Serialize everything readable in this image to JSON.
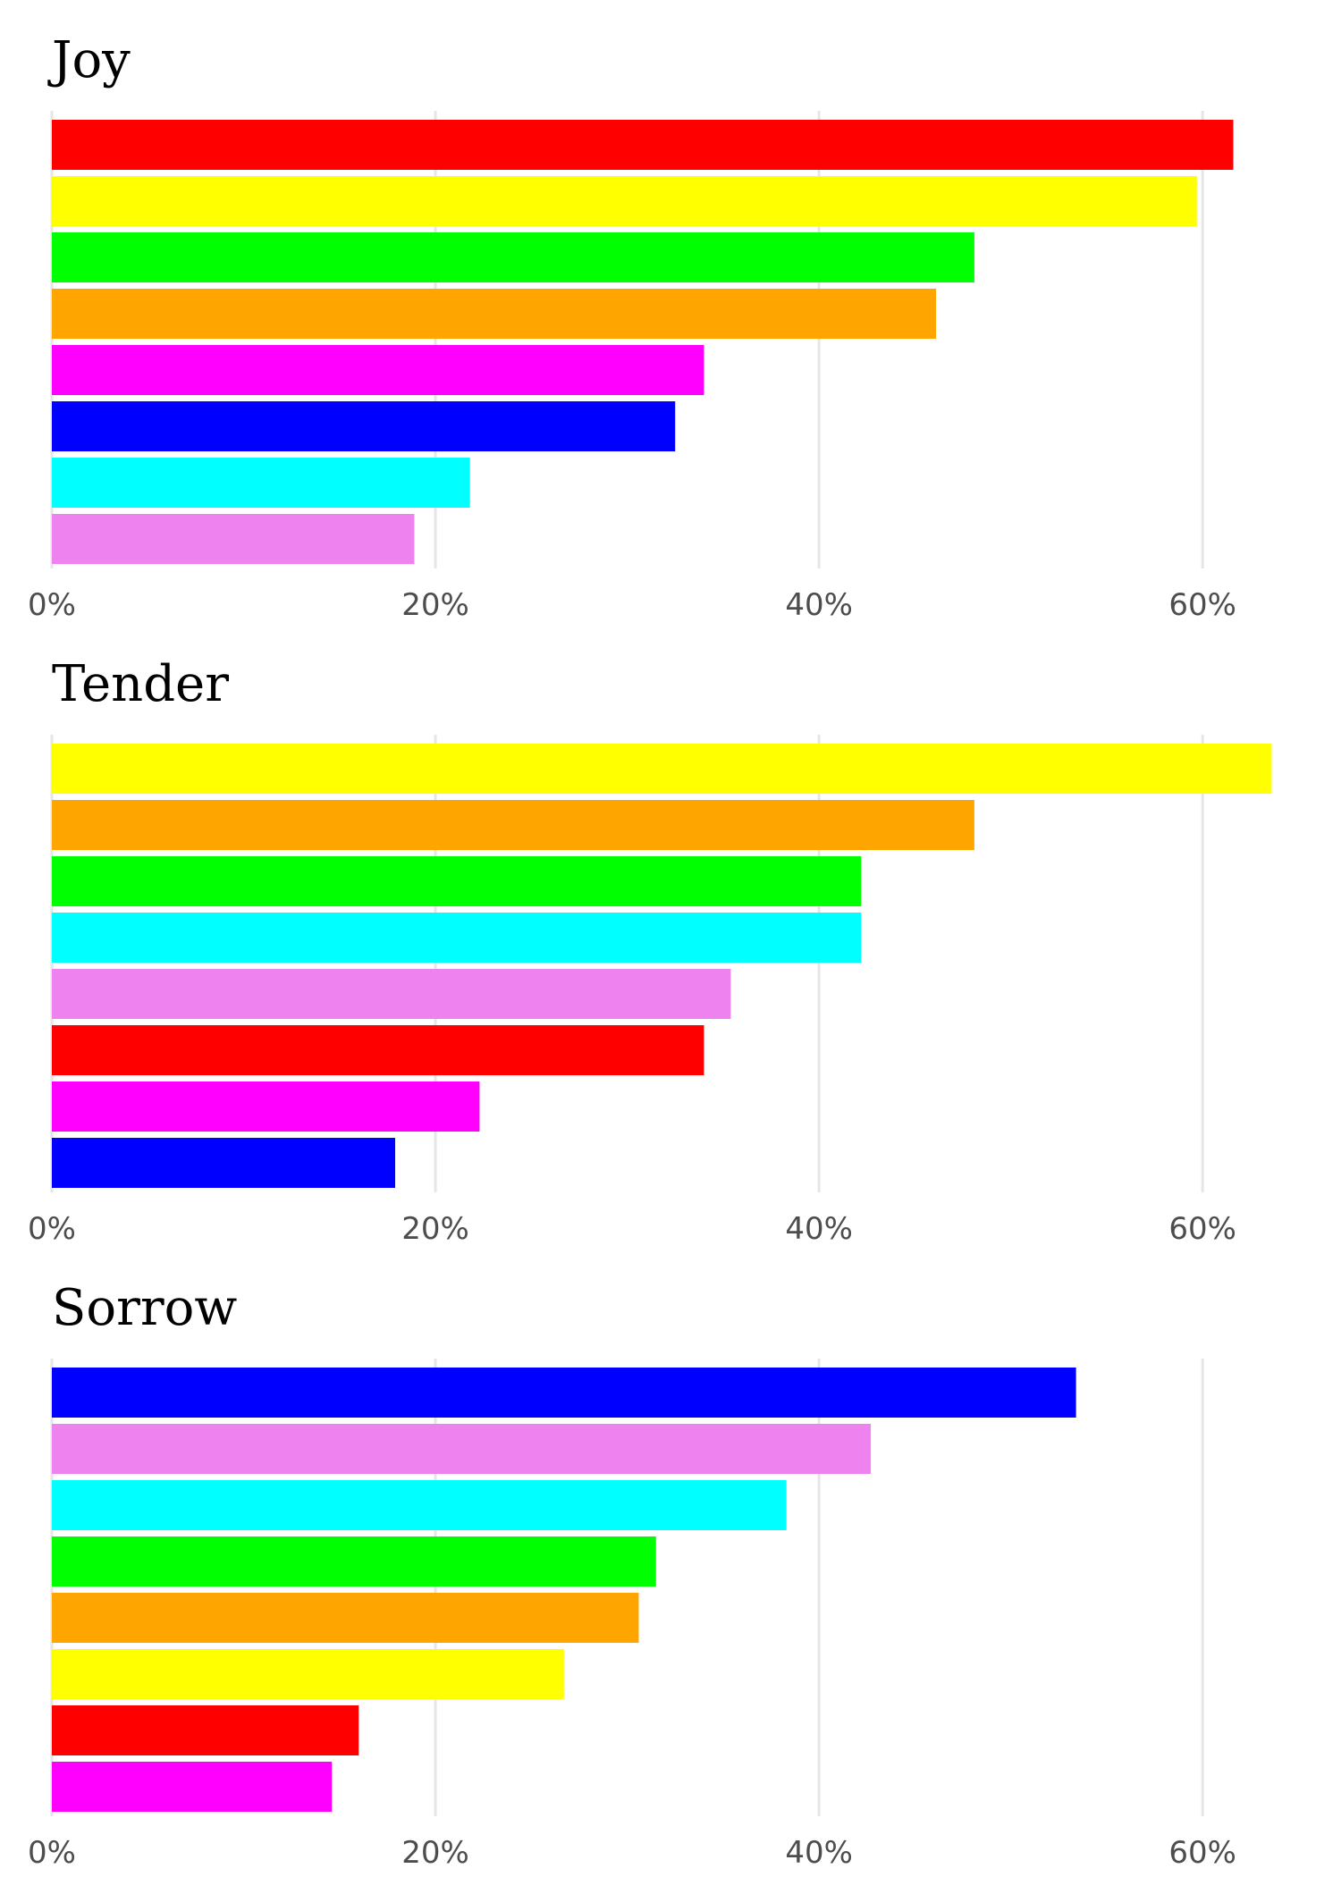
{
  "chart_data": [
    {
      "type": "bar",
      "orientation": "horizontal",
      "title": "Joy",
      "xlabel": "",
      "ylabel": "",
      "xlim": [
        0,
        0.64
      ],
      "x_ticks": [
        0,
        0.2,
        0.4,
        0.6
      ],
      "x_tick_labels": [
        "0%",
        "20%",
        "40%",
        "60%"
      ],
      "grid": "vertical",
      "colors": [
        "#ff0000",
        "#ffff00",
        "#00ff00",
        "#ffa500",
        "#ff00ff",
        "#0000ff",
        "#00ffff",
        "#ee82ee"
      ],
      "values": [
        0.616,
        0.597,
        0.481,
        0.461,
        0.34,
        0.325,
        0.218,
        0.189
      ]
    },
    {
      "type": "bar",
      "orientation": "horizontal",
      "title": "Tender",
      "xlabel": "",
      "ylabel": "",
      "xlim": [
        0,
        0.64
      ],
      "x_ticks": [
        0,
        0.2,
        0.4,
        0.6
      ],
      "x_tick_labels": [
        "0%",
        "20%",
        "40%",
        "60%"
      ],
      "grid": "vertical",
      "colors": [
        "#ffff00",
        "#ffa500",
        "#00ff00",
        "#00ffff",
        "#ee82ee",
        "#ff0000",
        "#ff00ff",
        "#0000ff"
      ],
      "values": [
        0.636,
        0.481,
        0.422,
        0.422,
        0.354,
        0.34,
        0.223,
        0.179
      ]
    },
    {
      "type": "bar",
      "orientation": "horizontal",
      "title": "Sorrow",
      "xlabel": "",
      "ylabel": "",
      "xlim": [
        0,
        0.64
      ],
      "x_ticks": [
        0,
        0.2,
        0.4,
        0.6
      ],
      "x_tick_labels": [
        "0%",
        "20%",
        "40%",
        "60%"
      ],
      "grid": "vertical",
      "colors": [
        "#0000ff",
        "#ee82ee",
        "#00ffff",
        "#00ff00",
        "#ffa500",
        "#ffff00",
        "#ff0000",
        "#ff00ff"
      ],
      "values": [
        0.534,
        0.427,
        0.383,
        0.315,
        0.306,
        0.267,
        0.16,
        0.146
      ]
    }
  ]
}
